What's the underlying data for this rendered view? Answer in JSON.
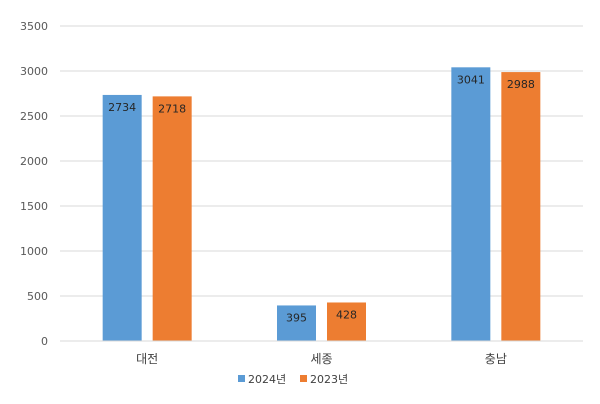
{
  "chart_data": {
    "type": "bar",
    "categories": [
      "대전",
      "세종",
      "충남"
    ],
    "series": [
      {
        "name": "2024년",
        "values": [
          2734,
          395,
          3041
        ],
        "color": "#5B9BD5"
      },
      {
        "name": "2023년",
        "values": [
          2718,
          428,
          2988
        ],
        "color": "#ED7D31"
      }
    ],
    "title": "",
    "xlabel": "",
    "ylabel": "",
    "ylim": [
      0,
      3500
    ],
    "ytick_step": 500,
    "yticks": [
      "0",
      "500",
      "1000",
      "1500",
      "2000",
      "2500",
      "3000",
      "3500"
    ],
    "grid": true,
    "legend_position": "bottom",
    "data_labels": true,
    "gridline_color": "#D9D9D9"
  }
}
